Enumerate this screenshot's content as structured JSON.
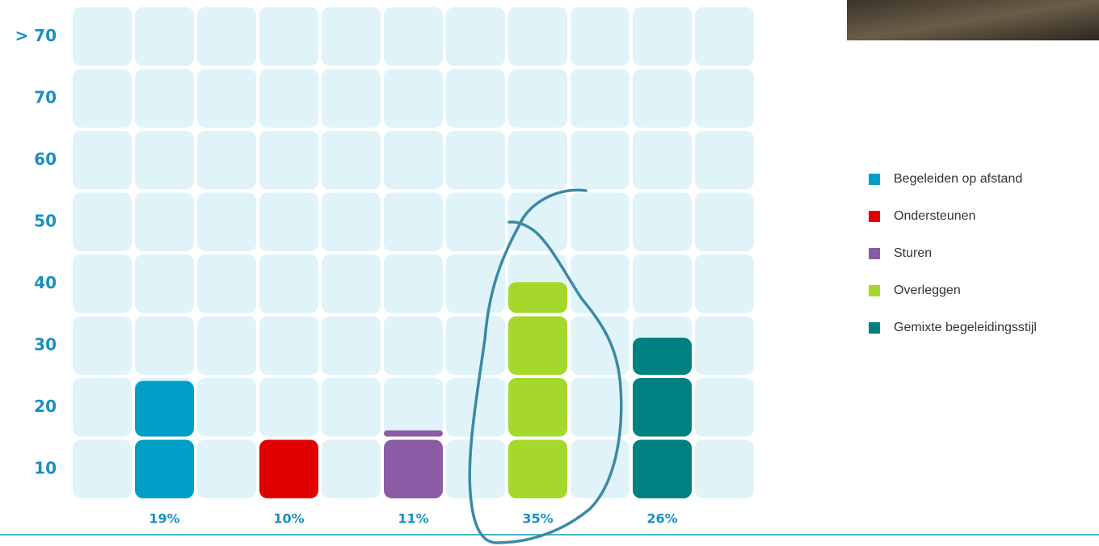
{
  "chart_data": {
    "type": "tile-bar",
    "row_labels": [
      "10",
      "20",
      "30",
      "40",
      "50",
      "60",
      "70",
      "> 70"
    ],
    "categories": [
      "Begeleiden op afstand",
      "Ondersteunen",
      "Sturen",
      "Overleggen",
      "Gemixte begeleidingsstijl"
    ],
    "values": [
      19,
      10,
      11,
      35,
      26
    ],
    "value_labels": [
      "19%",
      "10%",
      "11%",
      "35%",
      "26%"
    ],
    "colors": [
      "#009fc7",
      "#e00000",
      "#8c5ba6",
      "#a6d82b",
      "#008080"
    ],
    "ylim": [
      0,
      80
    ]
  }
}
